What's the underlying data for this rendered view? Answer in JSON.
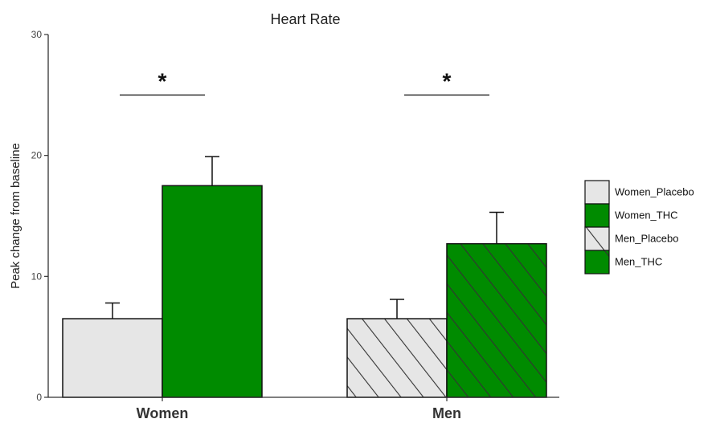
{
  "chart_data": {
    "type": "bar",
    "title": "Heart Rate",
    "ylabel": "Peak change from baseline",
    "xlabel": "",
    "categories": [
      "Women",
      "Men"
    ],
    "ylim": [
      0,
      30
    ],
    "yticks": [
      0,
      10,
      20,
      30
    ],
    "grid": false,
    "legend_position": "right",
    "bars": [
      {
        "name": "Women_Placebo",
        "category": "Women",
        "value": 6.5,
        "error": 1.3,
        "fill": "#e6e6e6",
        "hatch": false
      },
      {
        "name": "Women_THC",
        "category": "Women",
        "value": 17.5,
        "error": 2.4,
        "fill": "#008b00",
        "hatch": false
      },
      {
        "name": "Men_Placebo",
        "category": "Men",
        "value": 6.5,
        "error": 1.6,
        "fill": "#e6e6e6",
        "hatch": true
      },
      {
        "name": "Men_THC",
        "category": "Men",
        "value": 12.7,
        "error": 2.6,
        "fill": "#008b00",
        "hatch": true
      }
    ],
    "significance": [
      {
        "category": "Women",
        "label": "*",
        "y": 25
      },
      {
        "category": "Men",
        "label": "*",
        "y": 25
      }
    ],
    "legend": [
      {
        "label": "Women_Placebo",
        "fill": "#e6e6e6",
        "hatch": false
      },
      {
        "label": "Women_THC",
        "fill": "#008b00",
        "hatch": false
      },
      {
        "label": "Men_Placebo",
        "fill": "#e6e6e6",
        "hatch": true
      },
      {
        "label": "Men_THC",
        "fill": "#008b00",
        "hatch": true
      }
    ]
  }
}
